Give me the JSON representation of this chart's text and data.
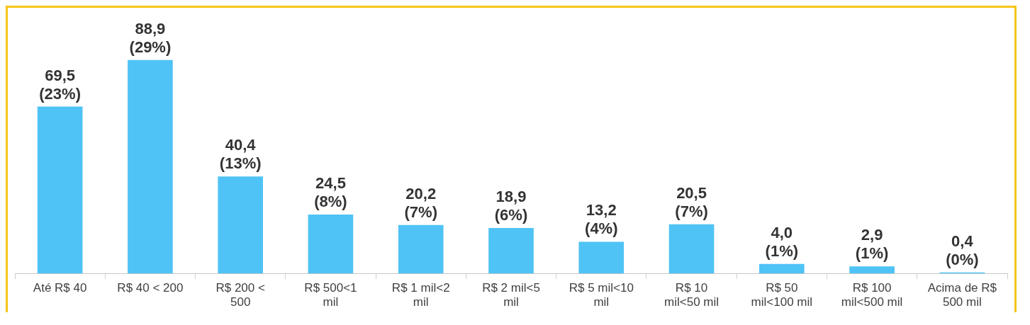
{
  "chart_data": {
    "type": "bar",
    "categories": [
      "Até R$ 40",
      "R$ 40 < 200",
      "R$ 200 < 500",
      "R$ 500<1 mil",
      "R$ 1 mil<2 mil",
      "R$ 2 mil<5 mil",
      "R$ 5 mil<10 mil",
      "R$ 10 mil<50 mil",
      "R$ 50 mil<100 mil",
      "R$ 100 mil<500 mil",
      "Acima de R$ 500 mil"
    ],
    "values": [
      69.5,
      88.9,
      40.4,
      24.5,
      20.2,
      18.9,
      13.2,
      20.5,
      4.0,
      2.9,
      0.4
    ],
    "value_labels": [
      "69,5 (23%)",
      "88,9 (29%)",
      "40,4 (13%)",
      "24,5 (8%)",
      "20,2 (7%)",
      "18,9 (6%)",
      "13,2 (4%)",
      "20,5 (7%)",
      "4,0 (1%)",
      "2,9 (1%)",
      "0,4 (0%)"
    ],
    "color": "#4fc3f5",
    "grid": false,
    "legend": false
  }
}
